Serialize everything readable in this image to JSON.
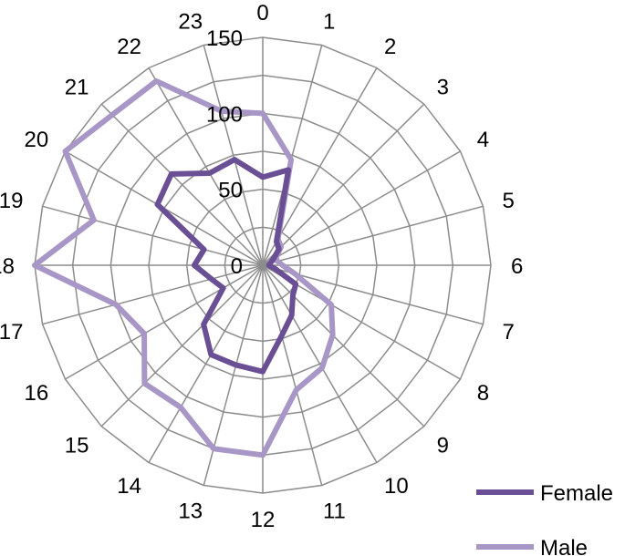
{
  "chart_data": {
    "type": "radar",
    "categories": [
      "0",
      "1",
      "2",
      "3",
      "4",
      "5",
      "6",
      "7",
      "8",
      "9",
      "10",
      "11",
      "12",
      "13",
      "14",
      "15",
      "16",
      "17",
      "18",
      "19",
      "20",
      "21",
      "22",
      "23"
    ],
    "ylim": [
      0,
      150
    ],
    "ticks": [
      0,
      50,
      100,
      150
    ],
    "tick_labels": [
      "0",
      "50",
      "100",
      "150"
    ],
    "grid": true,
    "legend_position": "bottom-right",
    "series": [
      {
        "name": "Female",
        "color": "#6a4f94",
        "values": [
          58,
          65,
          18,
          15,
          8,
          5,
          4,
          8,
          25,
          28,
          38,
          48,
          70,
          68,
          68,
          55,
          30,
          35,
          45,
          40,
          80,
          85,
          70,
          72
        ]
      },
      {
        "name": "Male",
        "color": "#a897c6",
        "values": [
          100,
          72,
          20,
          17,
          10,
          10,
          13,
          22,
          52,
          65,
          78,
          85,
          125,
          125,
          108,
          110,
          90,
          100,
          150,
          115,
          150,
          140,
          140,
          105
        ]
      }
    ]
  }
}
